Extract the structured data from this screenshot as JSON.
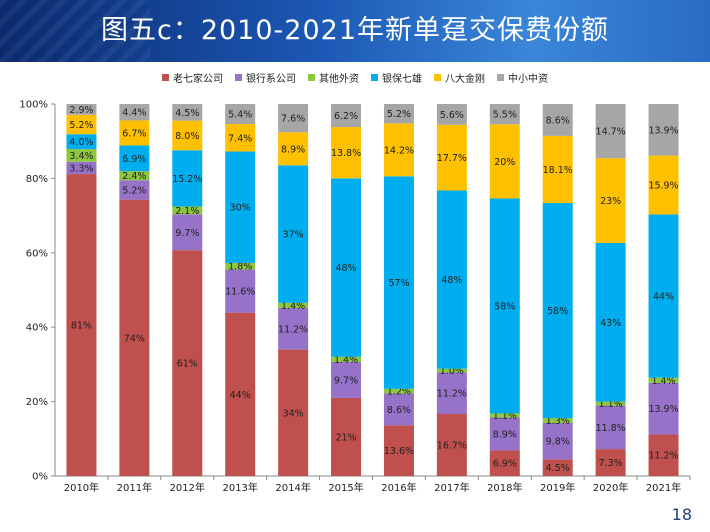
{
  "title": "图五c：2010-2021年新单趸交保费份额",
  "page_number": "18",
  "chart_data": {
    "type": "bar",
    "stacked": true,
    "categories": [
      "2010年",
      "2011年",
      "2012年",
      "2013年",
      "2014年",
      "2015年",
      "2016年",
      "2017年",
      "2018年",
      "2019年",
      "2020年",
      "2021年"
    ],
    "y_ticks": [
      "0%",
      "20%",
      "40%",
      "60%",
      "80%",
      "100%"
    ],
    "ylim": [
      0,
      100
    ],
    "grid": false,
    "legend_position": "top",
    "series": [
      {
        "name": "老七家公司",
        "color": "#c0504d",
        "values": [
          81,
          74,
          61,
          44,
          34,
          21,
          13.6,
          16.7,
          6.9,
          4.5,
          7.3,
          11.2
        ],
        "labels": [
          "81%",
          "74%",
          "61%",
          "44%",
          "34%",
          "21%",
          "13.6%",
          "16.7%",
          "6.9%",
          "4.5%",
          "7.3%",
          "11.2%"
        ]
      },
      {
        "name": "银行系公司",
        "color": "#9673c9",
        "values": [
          3.3,
          5.2,
          9.7,
          11.6,
          11.2,
          9.7,
          8.6,
          11.2,
          8.9,
          9.8,
          11.8,
          13.9
        ],
        "labels": [
          "3.3%",
          "5.2%",
          "9.7%",
          "11.6%",
          "11.2%",
          "9.7%",
          "8.6%",
          "11.2%",
          "8.9%",
          "9.8%",
          "11.8%",
          "13.9%"
        ]
      },
      {
        "name": "其他外资",
        "color": "#8dc63f",
        "values": [
          3.4,
          2.4,
          2.1,
          1.8,
          1.4,
          1.4,
          1.2,
          1.0,
          1.1,
          1.3,
          1.1,
          1.4
        ],
        "labels": [
          "3.4%",
          "2.4%",
          "2.1%",
          "1.8%",
          "1.4%",
          "1.4%",
          "1.2%",
          "1.0%",
          "1.1%",
          "1.3%",
          "1.1%",
          "1.4%"
        ]
      },
      {
        "name": "银保七雄",
        "color": "#00aeef",
        "values": [
          4.0,
          6.9,
          15.2,
          30,
          37,
          48,
          57,
          48,
          58,
          58,
          43,
          44
        ],
        "labels": [
          "4.0%",
          "6.9%",
          "15.2%",
          "30%",
          "37%",
          "48%",
          "57%",
          "48%",
          "58%",
          "58%",
          "43%",
          "44%"
        ]
      },
      {
        "name": "八大金刚",
        "color": "#ffc000",
        "values": [
          5.2,
          6.7,
          8.0,
          7.4,
          8.9,
          13.8,
          14.2,
          17.7,
          20,
          18.1,
          23,
          15.9
        ],
        "labels": [
          "5.2%",
          "6.7%",
          "8.0%",
          "7.4%",
          "8.9%",
          "13.8%",
          "14.2%",
          "17.7%",
          "20%",
          "18.1%",
          "23%",
          "15.9%"
        ]
      },
      {
        "name": "中小中资",
        "color": "#a6a6a6",
        "values": [
          2.9,
          4.4,
          4.5,
          5.4,
          7.6,
          6.2,
          5.2,
          5.6,
          5.5,
          8.6,
          14.7,
          13.9
        ],
        "labels": [
          "2.9%",
          "4.4%",
          "4.5%",
          "5.4%",
          "7.6%",
          "6.2%",
          "5.2%",
          "5.6%",
          "5.5%",
          "8.6%",
          "14.7%",
          "13.9%"
        ]
      }
    ]
  }
}
